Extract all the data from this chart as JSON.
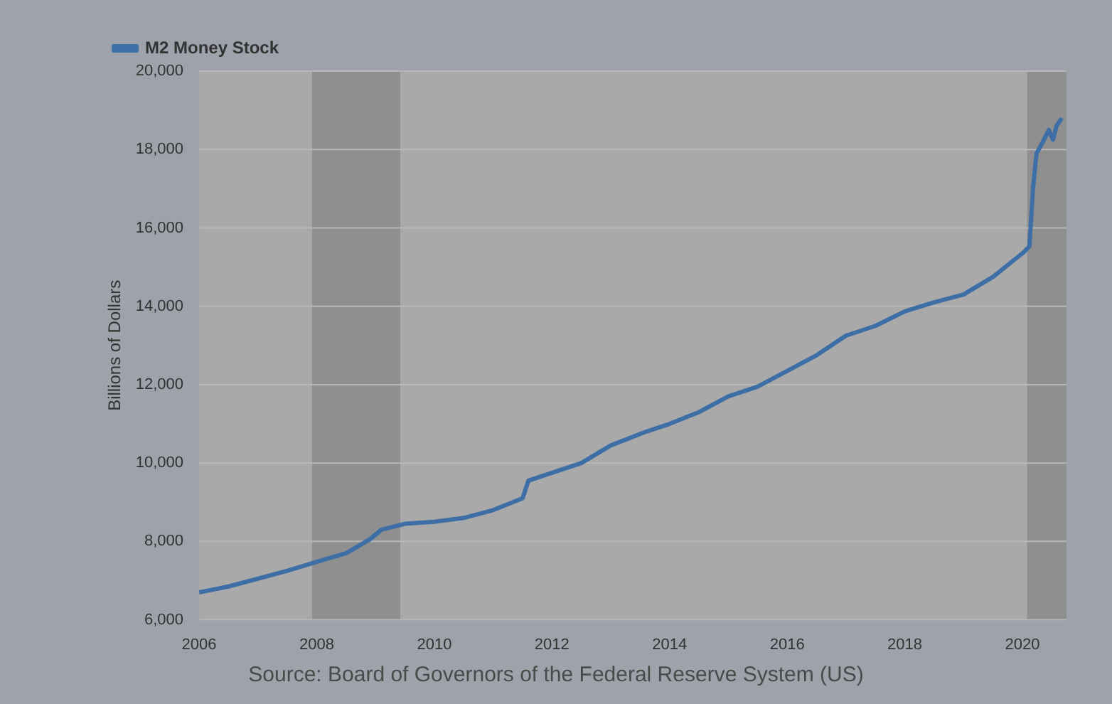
{
  "chart_data": {
    "type": "line",
    "ylabel": "Billions of Dollars",
    "x": [
      2006.0,
      2006.5,
      2007.0,
      2007.5,
      2008.0,
      2008.5,
      2008.9,
      2009.1,
      2009.5,
      2010.0,
      2010.5,
      2011.0,
      2011.5,
      2011.6,
      2012.0,
      2012.5,
      2013.0,
      2013.6,
      2014.0,
      2014.5,
      2015.0,
      2015.5,
      2016.0,
      2016.5,
      2017.0,
      2017.5,
      2018.0,
      2018.5,
      2019.0,
      2019.5,
      2020.0,
      2020.12,
      2020.18,
      2020.24,
      2020.35,
      2020.45,
      2020.52,
      2020.58,
      2020.67
    ],
    "series": [
      {
        "name": "M2 Money Stock",
        "color": "#3e6ea6",
        "values": [
          6700,
          6850,
          7050,
          7250,
          7480,
          7700,
          8050,
          8300,
          8450,
          8500,
          8600,
          8800,
          9100,
          9550,
          9750,
          10000,
          10450,
          10800,
          11000,
          11300,
          11700,
          11950,
          12350,
          12750,
          13250,
          13500,
          13870,
          14100,
          14300,
          14750,
          15350,
          15530,
          17000,
          17900,
          18200,
          18500,
          18250,
          18600,
          18800
        ]
      }
    ],
    "xlim": [
      2006,
      2020.75
    ],
    "xticks": [
      2006,
      2008,
      2010,
      2012,
      2014,
      2016,
      2018,
      2020
    ],
    "ylim": [
      6000,
      20000
    ],
    "yticks": [
      {
        "value": 6000,
        "label": "6,000"
      },
      {
        "value": 8000,
        "label": "8,000"
      },
      {
        "value": 10000,
        "label": "10,000"
      },
      {
        "value": 12000,
        "label": "12,000"
      },
      {
        "value": 14000,
        "label": "14,000"
      },
      {
        "value": 16000,
        "label": "16,000"
      },
      {
        "value": 18000,
        "label": "18,000"
      },
      {
        "value": 20000,
        "label": "20,000"
      }
    ],
    "bands": [
      {
        "axis": "x",
        "from": 2007.92,
        "to": 2009.42,
        "color": "#8f8f8f"
      },
      {
        "axis": "x",
        "from": 2020.08,
        "to": 2020.75,
        "color": "#8f8f8f"
      }
    ],
    "grid": "y",
    "legend": "top left",
    "marker": "none",
    "line_style": "solid",
    "annotations": [
      "Source: Board of Governors of the Federal Reserve System (US)"
    ]
  }
}
